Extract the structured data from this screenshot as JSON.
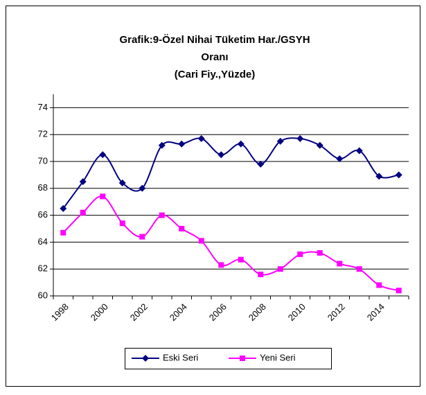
{
  "chart_data": {
    "type": "line",
    "title": [
      "Grafik:9-Özel Nihai Tüketim Har./GSYH",
      "Oranı",
      "(Cari Fiy.,Yüzde)"
    ],
    "categories": [
      "1998",
      null,
      "2000",
      null,
      "2002",
      null,
      "2004",
      null,
      "2006",
      null,
      "2008",
      null,
      "2010",
      null,
      "2012",
      null,
      "2014",
      null
    ],
    "series": [
      {
        "name": "Eski Seri",
        "color": "#000080",
        "marker": "diamond",
        "values": [
          66.5,
          68.5,
          70.5,
          68.4,
          68.0,
          71.2,
          71.3,
          71.7,
          70.5,
          71.3,
          69.8,
          71.5,
          71.7,
          71.2,
          70.2,
          70.8,
          68.9,
          69.0
        ]
      },
      {
        "name": "Yeni Seri",
        "color": "#FF00FF",
        "marker": "square",
        "values": [
          64.7,
          66.2,
          67.4,
          65.4,
          64.4,
          66.0,
          65.0,
          64.1,
          62.3,
          62.7,
          61.6,
          62.0,
          63.1,
          63.2,
          62.4,
          62.0,
          60.8,
          60.4
        ]
      }
    ],
    "ylim": [
      60,
      75
    ],
    "yticks": [
      60,
      62,
      64,
      66,
      68,
      70,
      72,
      74
    ],
    "grid": true,
    "legend": "bottom"
  }
}
